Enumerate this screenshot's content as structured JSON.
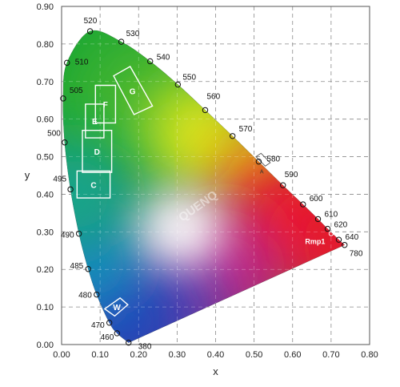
{
  "chart_data": {
    "type": "chromaticity-diagram",
    "xlabel": "x",
    "ylabel": "y",
    "xlim": [
      0,
      0.8
    ],
    "ylim": [
      0,
      0.9
    ],
    "x_ticks": [
      "0.00",
      "0.10",
      "0.20",
      "0.30",
      "0.40",
      "0.50",
      "0.60",
      "0.70",
      "0.80"
    ],
    "y_ticks": [
      "0.00",
      "0.10",
      "0.20",
      "0.30",
      "0.40",
      "0.50",
      "0.60",
      "0.70",
      "0.80",
      "0.90"
    ],
    "grid": true,
    "spectral_locus": [
      {
        "label": "380",
        "x": 0.174,
        "y": 0.005
      },
      {
        "label": "460",
        "x": 0.144,
        "y": 0.03
      },
      {
        "label": "470",
        "x": 0.124,
        "y": 0.058
      },
      {
        "label": "480",
        "x": 0.091,
        "y": 0.133
      },
      {
        "label": "485",
        "x": 0.069,
        "y": 0.201
      },
      {
        "label": "490",
        "x": 0.045,
        "y": 0.295
      },
      {
        "label": "495",
        "x": 0.023,
        "y": 0.413
      },
      {
        "label": "500",
        "x": 0.008,
        "y": 0.538
      },
      {
        "label": "505",
        "x": 0.004,
        "y": 0.655
      },
      {
        "label": "510",
        "x": 0.014,
        "y": 0.75
      },
      {
        "label": "520",
        "x": 0.074,
        "y": 0.834
      },
      {
        "label": "530",
        "x": 0.155,
        "y": 0.806
      },
      {
        "label": "540",
        "x": 0.23,
        "y": 0.754
      },
      {
        "label": "550",
        "x": 0.302,
        "y": 0.692
      },
      {
        "label": "560",
        "x": 0.373,
        "y": 0.624
      },
      {
        "label": "570",
        "x": 0.444,
        "y": 0.555
      },
      {
        "label": "580",
        "x": 0.512,
        "y": 0.487
      },
      {
        "label": "590",
        "x": 0.575,
        "y": 0.424
      },
      {
        "label": "600",
        "x": 0.627,
        "y": 0.373
      },
      {
        "label": "610",
        "x": 0.666,
        "y": 0.334
      },
      {
        "label": "620",
        "x": 0.691,
        "y": 0.308
      },
      {
        "label": "640",
        "x": 0.72,
        "y": 0.279
      },
      {
        "label": "780",
        "x": 0.735,
        "y": 0.265
      }
    ],
    "regions": [
      {
        "label": "G",
        "points": [
          [
            0.135,
            0.715
          ],
          [
            0.178,
            0.74
          ],
          [
            0.236,
            0.635
          ],
          [
            0.188,
            0.612
          ]
        ]
      },
      {
        "label": "F",
        "points": [
          [
            0.088,
            0.69
          ],
          [
            0.14,
            0.69
          ],
          [
            0.14,
            0.59
          ],
          [
            0.088,
            0.59
          ]
        ]
      },
      {
        "label": "E",
        "points": [
          [
            0.062,
            0.64
          ],
          [
            0.11,
            0.64
          ],
          [
            0.11,
            0.55
          ],
          [
            0.062,
            0.55
          ]
        ]
      },
      {
        "label": "D",
        "points": [
          [
            0.054,
            0.57
          ],
          [
            0.13,
            0.57
          ],
          [
            0.13,
            0.458
          ],
          [
            0.054,
            0.458
          ]
        ]
      },
      {
        "label": "C",
        "points": [
          [
            0.04,
            0.462
          ],
          [
            0.126,
            0.462
          ],
          [
            0.126,
            0.39
          ],
          [
            0.04,
            0.39
          ]
        ]
      },
      {
        "label": "W",
        "points": [
          [
            0.112,
            0.095
          ],
          [
            0.138,
            0.076
          ],
          [
            0.172,
            0.106
          ],
          [
            0.152,
            0.124
          ]
        ]
      }
    ],
    "amber_box": {
      "label": "A",
      "points": [
        [
          0.505,
          0.5
        ],
        [
          0.529,
          0.475
        ],
        [
          0.542,
          0.484
        ],
        [
          0.518,
          0.509
        ]
      ]
    },
    "rmp_point": {
      "label": "Rmp1",
      "x": 0.7,
      "y": 0.295
    },
    "watermark_text": "QUENQ"
  }
}
